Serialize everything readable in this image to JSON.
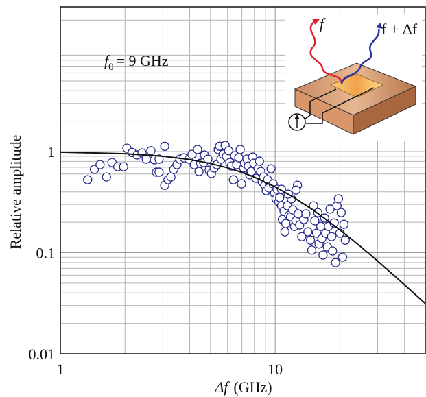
{
  "chart_data": {
    "type": "scatter",
    "ylabel": "Relative amplitude",
    "xlabel": {
      "symbol": "Δf",
      "unit": "(GHz)"
    },
    "annotation": {
      "symbol": "f",
      "subscript": "0",
      "rest": "= 9 GHz"
    },
    "inset_labels": [
      "f",
      "f + Δf"
    ],
    "xscale": "log",
    "yscale": "log",
    "xlim": [
      1,
      50
    ],
    "ylim": [
      0.01,
      27
    ],
    "xticks": [
      1,
      10
    ],
    "yticks": [
      0.01,
      0.1,
      1
    ],
    "minor_xticks": [
      2,
      3,
      4,
      5,
      6,
      7,
      8,
      9,
      20,
      30,
      40
    ],
    "minor_yticks": [
      0.02,
      0.03,
      0.04,
      0.05,
      0.06,
      0.07,
      0.08,
      0.09,
      0.2,
      0.3,
      0.4,
      0.5,
      0.6,
      0.7,
      0.8,
      0.9,
      2,
      3,
      4,
      5,
      6,
      7,
      8,
      9,
      20
    ],
    "grid": true,
    "series": [
      {
        "type": "scatter",
        "color": "#25298a",
        "x": [
          1.34,
          1.44,
          1.53,
          1.64,
          1.74,
          1.85,
          1.97,
          2.04,
          2.16,
          2.28,
          2.4,
          2.51,
          2.64,
          2.74,
          2.88,
          3.06,
          2.8,
          2.88,
          3.06,
          3.17,
          3.27,
          3.37,
          3.49,
          3.6,
          3.76,
          3.96,
          4.1,
          4.2,
          4.35,
          4.42,
          4.49,
          4.65,
          4.69,
          4.86,
          4.93,
          5.05,
          5.2,
          5.35,
          5.43,
          5.51,
          5.59,
          5.72,
          5.85,
          5.93,
          6.07,
          6.15,
          6.25,
          6.39,
          6.48,
          6.62,
          6.77,
          6.87,
          6.97,
          7.13,
          7.23,
          7.39,
          7.5,
          7.62,
          7.73,
          7.85,
          7.96,
          8.14,
          8.32,
          8.45,
          8.57,
          8.69,
          8.83,
          8.96,
          9.09,
          9.22,
          9.36,
          9.57,
          9.78,
          9.93,
          10.1,
          10.2,
          10.4,
          10.5,
          10.7,
          10.8,
          11.0,
          11.1,
          11.2,
          11.4,
          11.6,
          11.8,
          11.9,
          12.1,
          12.3,
          12.5,
          12.7,
          12.8,
          13.0,
          13.3,
          13.6,
          13.9,
          14.2,
          14.6,
          14.8,
          15.1,
          15.3,
          15.6,
          15.8,
          16.0,
          16.3,
          16.5,
          16.7,
          17.0,
          17.2,
          17.5,
          17.7,
          18.0,
          18.3,
          18.5,
          18.8,
          19.1,
          19.4,
          19.7,
          20.0,
          20.3,
          20.6,
          20.9,
          21.2,
          12.5,
          11.5,
          10.7
        ],
        "values": [
          0.527,
          0.667,
          0.743,
          0.561,
          0.779,
          0.709,
          0.709,
          1.08,
          0.98,
          0.925,
          0.97,
          0.842,
          1.02,
          0.83,
          0.842,
          1.13,
          0.626,
          0.626,
          0.465,
          0.527,
          0.561,
          0.667,
          0.743,
          0.842,
          0.869,
          0.842,
          0.94,
          0.743,
          1.05,
          0.636,
          0.767,
          0.779,
          0.925,
          0.842,
          0.656,
          0.607,
          0.688,
          0.743,
          1.05,
          1.13,
          0.842,
          0.94,
          1.15,
          0.897,
          1.02,
          0.779,
          0.721,
          0.527,
          0.911,
          0.743,
          0.869,
          1.05,
          0.48,
          0.688,
          0.767,
          0.842,
          0.721,
          0.588,
          0.636,
          0.883,
          0.767,
          0.544,
          0.677,
          0.804,
          0.636,
          0.503,
          0.561,
          0.465,
          0.411,
          0.527,
          0.437,
          0.677,
          0.48,
          0.386,
          0.341,
          0.424,
          0.32,
          0.351,
          0.291,
          0.213,
          0.257,
          0.161,
          0.194,
          0.291,
          0.234,
          0.227,
          0.341,
          0.265,
          0.182,
          0.207,
          0.465,
          0.242,
          0.188,
          0.144,
          0.213,
          0.242,
          0.161,
          0.133,
          0.106,
          0.291,
          0.207,
          0.156,
          0.249,
          0.122,
          0.182,
          0.138,
          0.0947,
          0.22,
          0.156,
          0.114,
          0.182,
          0.27,
          0.144,
          0.104,
          0.197,
          0.0797,
          0.291,
          0.341,
          0.156,
          0.249,
          0.0904,
          0.191,
          0.133,
          0.417,
          0.38,
          0.424
        ]
      },
      {
        "type": "line",
        "color": "#111111",
        "x": [
          1,
          2,
          3,
          4,
          5,
          6,
          7,
          8,
          10,
          12,
          15,
          20,
          25,
          30,
          40,
          50
        ],
        "values": [
          0.988,
          0.953,
          0.9,
          0.835,
          0.764,
          0.692,
          0.623,
          0.559,
          0.448,
          0.36,
          0.265,
          0.168,
          0.115,
          0.0826,
          0.0482,
          0.0314
        ]
      }
    ]
  }
}
